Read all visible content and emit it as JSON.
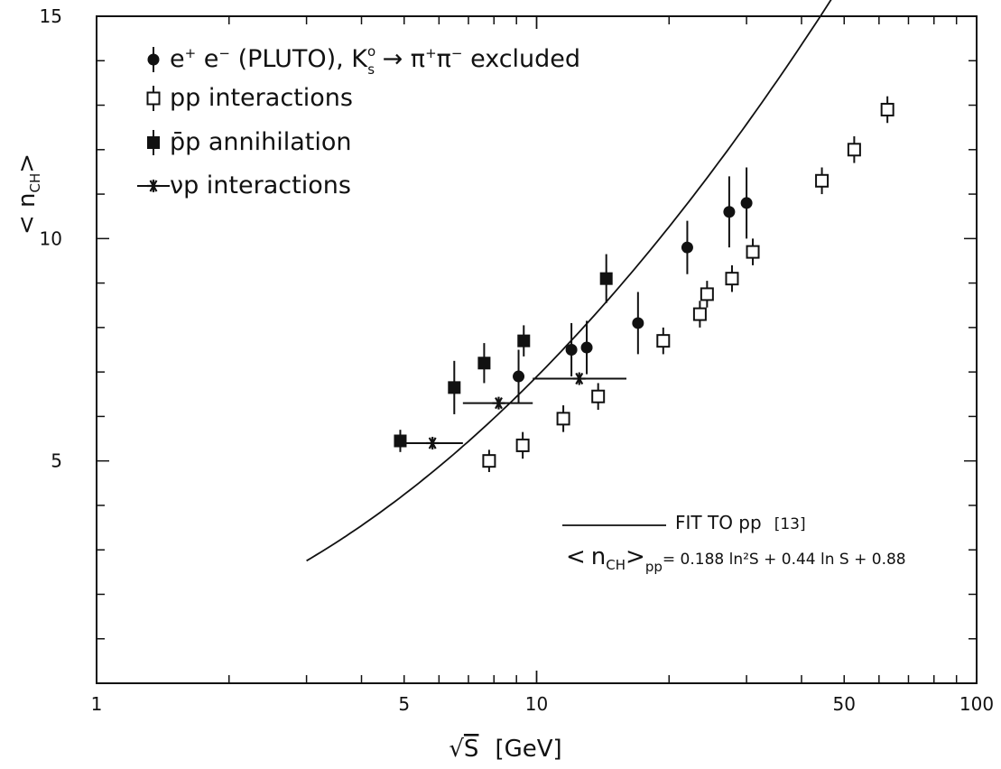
{
  "chart_data": {
    "type": "scatter",
    "x_scale": "log",
    "y_scale": "linear",
    "xlim": [
      1,
      100
    ],
    "ylim": [
      0,
      15
    ],
    "grid": false,
    "legend_position": "top-left",
    "x_ticks": [
      1,
      5,
      10,
      50,
      100
    ],
    "x_tick_labels": [
      "1",
      "5",
      "10",
      "50",
      "100"
    ],
    "y_ticks": [
      5,
      10,
      15
    ],
    "y_tick_labels": [
      "5",
      "10",
      "15"
    ],
    "xlabel": {
      "root": "√",
      "var": "S",
      "unit": "[GeV]"
    },
    "ylabel": {
      "open": "<",
      "var": "n",
      "sub": "CH",
      "close": ">"
    },
    "legend": [
      {
        "marker": "filled-circle",
        "parts": [
          "e",
          "+",
          " e",
          "−",
          " (PLUTO), K",
          "o",
          "s",
          " → π",
          "+",
          "π",
          "−",
          " excluded"
        ]
      },
      {
        "marker": "open-square",
        "parts": [
          "pp interactions"
        ]
      },
      {
        "marker": "filled-square",
        "parts": [
          "p̄p annihilation"
        ]
      },
      {
        "marker": "star",
        "parts": [
          "νp interactions"
        ]
      }
    ],
    "fit": {
      "label": "FIT TO pp",
      "ref": "[13]",
      "formula_lhs_open": "<",
      "formula_lhs_var": "n",
      "formula_lhs_sub": "CH",
      "formula_lhs_close": ">",
      "formula_lhs_pp": "pp",
      "formula_rhs": "= 0.188 ln²S + 0.44 ln S + 0.88",
      "coefficients": {
        "a": 0.188,
        "b": 0.44,
        "c": 0.88
      },
      "x_range": [
        3,
        65
      ]
    },
    "series": [
      {
        "marker": "filled-circle",
        "points": [
          {
            "x": 9.1,
            "y": 6.9,
            "err": 0.6
          },
          {
            "x": 12.0,
            "y": 7.5,
            "err": 0.6
          },
          {
            "x": 13.0,
            "y": 7.55,
            "err": 0.6
          },
          {
            "x": 17.0,
            "y": 8.1,
            "err": 0.7
          },
          {
            "x": 22.0,
            "y": 9.8,
            "err": 0.6
          },
          {
            "x": 27.4,
            "y": 10.6,
            "err": 0.8
          },
          {
            "x": 30.0,
            "y": 10.8,
            "err": 0.8
          }
        ]
      },
      {
        "marker": "open-square",
        "points": [
          {
            "x": 7.8,
            "y": 5.0,
            "err": 0.25
          },
          {
            "x": 9.3,
            "y": 5.35,
            "err": 0.3
          },
          {
            "x": 11.5,
            "y": 5.95,
            "err": 0.3
          },
          {
            "x": 13.8,
            "y": 6.45,
            "err": 0.3
          },
          {
            "x": 19.4,
            "y": 7.7,
            "err": 0.3
          },
          {
            "x": 23.5,
            "y": 8.3,
            "err": 0.3
          },
          {
            "x": 24.4,
            "y": 8.75,
            "err": 0.3
          },
          {
            "x": 27.8,
            "y": 9.1,
            "err": 0.3
          },
          {
            "x": 31.0,
            "y": 9.7,
            "err": 0.3
          },
          {
            "x": 44.5,
            "y": 11.3,
            "err": 0.3
          },
          {
            "x": 52.7,
            "y": 12.0,
            "err": 0.3
          },
          {
            "x": 62.7,
            "y": 12.9,
            "err": 0.3
          }
        ]
      },
      {
        "marker": "filled-square",
        "points": [
          {
            "x": 4.9,
            "y": 5.45,
            "err": 0.25
          },
          {
            "x": 6.5,
            "y": 6.65,
            "err": 0.6
          },
          {
            "x": 7.6,
            "y": 7.2,
            "err": 0.45
          },
          {
            "x": 9.35,
            "y": 7.7,
            "err": 0.35
          },
          {
            "x": 14.4,
            "y": 9.1,
            "err": 0.55
          }
        ]
      },
      {
        "marker": "star",
        "points": [
          {
            "x": 5.8,
            "y": 5.4,
            "xlo": 5.0,
            "xhi": 6.8
          },
          {
            "x": 8.2,
            "y": 6.3,
            "xlo": 6.8,
            "xhi": 9.8
          },
          {
            "x": 12.5,
            "y": 6.85,
            "xlo": 9.8,
            "xhi": 16.0
          }
        ]
      }
    ]
  }
}
